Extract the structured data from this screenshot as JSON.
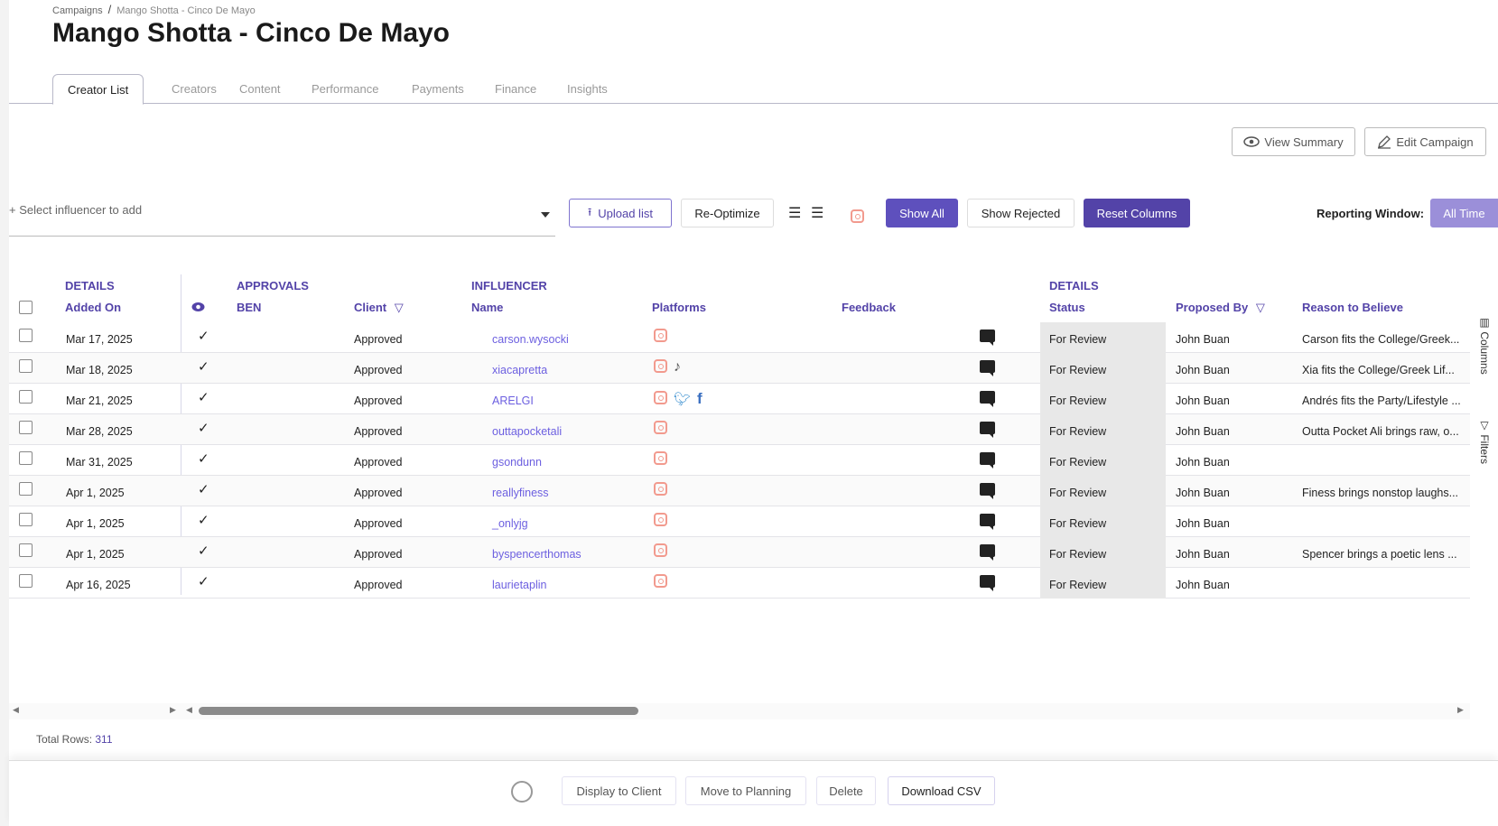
{
  "breadcrumb": {
    "root": "Campaigns",
    "current": "Mango Shotta - Cinco De Mayo"
  },
  "title": "Mango Shotta - Cinco De Mayo",
  "tabs": [
    "Creator List",
    "Creators",
    "Content",
    "Performance",
    "Payments",
    "Finance",
    "Insights"
  ],
  "header_buttons": {
    "view_summary": "View Summary",
    "edit_campaign": "Edit Campaign"
  },
  "toolbar": {
    "select_placeholder": "+ Select influencer to add",
    "upload": "Upload list",
    "reoptimize": "Re-Optimize",
    "show_all": "Show All",
    "show_rejected": "Show Rejected",
    "reset_columns": "Reset Columns",
    "reporting_label": "Reporting Window:",
    "reporting_value": "All Time"
  },
  "colors": {
    "accent": "#5343a8",
    "link": "#6c5fe0",
    "instagram": "#f29a8e"
  },
  "table": {
    "groups": {
      "details": "DETAILS",
      "approvals": "APPROVALS",
      "influencer": "INFLUENCER",
      "details2": "DETAILS"
    },
    "columns": {
      "added_on": "Added On",
      "ben": "BEN",
      "client": "Client",
      "name": "Name",
      "platforms": "Platforms",
      "feedback": "Feedback",
      "status": "Status",
      "proposed_by": "Proposed By",
      "reason": "Reason to Believe"
    },
    "rows": [
      {
        "added": "Mar 17, 2025",
        "client": "Approved",
        "name": "carson.wysocki",
        "platforms": [
          "instagram"
        ],
        "status": "For Review",
        "proposed": "John Buan",
        "reason": "Carson fits the College/Greek..."
      },
      {
        "added": "Mar 18, 2025",
        "client": "Approved",
        "name": "xiacapretta",
        "platforms": [
          "instagram",
          "tiktok"
        ],
        "status": "For Review",
        "proposed": "John Buan",
        "reason": "Xia fits the College/Greek Lif..."
      },
      {
        "added": "Mar 21, 2025",
        "client": "Approved",
        "name": "ARELGI",
        "platforms": [
          "instagram",
          "twitter",
          "facebook"
        ],
        "status": "For Review",
        "proposed": "John Buan",
        "reason": "Andrés fits the Party/Lifestyle ..."
      },
      {
        "added": "Mar 28, 2025",
        "client": "Approved",
        "name": "outtapocketali",
        "platforms": [
          "instagram"
        ],
        "status": "For Review",
        "proposed": "John Buan",
        "reason": "Outta Pocket Ali brings raw, o..."
      },
      {
        "added": "Mar 31, 2025",
        "client": "Approved",
        "name": "gsondunn",
        "platforms": [
          "instagram"
        ],
        "status": "For Review",
        "proposed": "John Buan",
        "reason": ""
      },
      {
        "added": "Apr 1, 2025",
        "client": "Approved",
        "name": "reallyfiness",
        "platforms": [
          "instagram"
        ],
        "status": "For Review",
        "proposed": "John Buan",
        "reason": "Finess brings nonstop laughs..."
      },
      {
        "added": "Apr 1, 2025",
        "client": "Approved",
        "name": "_onlyjg",
        "platforms": [
          "instagram"
        ],
        "status": "For Review",
        "proposed": "John Buan",
        "reason": ""
      },
      {
        "added": "Apr 1, 2025",
        "client": "Approved",
        "name": "byspencerthomas",
        "platforms": [
          "instagram"
        ],
        "status": "For Review",
        "proposed": "John Buan",
        "reason": "Spencer brings a poetic lens ..."
      },
      {
        "added": "Apr 16, 2025",
        "client": "Approved",
        "name": "laurietaplin",
        "platforms": [
          "instagram"
        ],
        "status": "For Review",
        "proposed": "John Buan",
        "reason": ""
      }
    ]
  },
  "side_panel": {
    "columns": "Columns",
    "filters": "Filters"
  },
  "footer": {
    "total_label": "Total Rows:",
    "total_value": "311"
  },
  "actions": {
    "display": "Display to Client",
    "move": "Move to Planning",
    "delete": "Delete",
    "download": "Download CSV"
  }
}
